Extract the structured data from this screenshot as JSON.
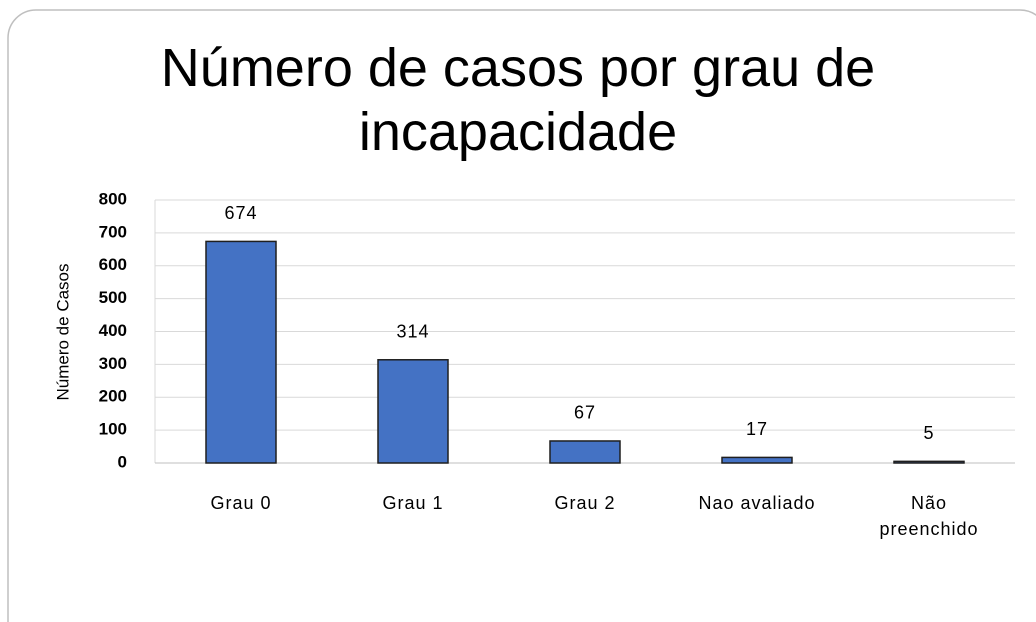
{
  "chart_data": {
    "type": "bar",
    "title": "Número de casos por grau de incapacidade",
    "y_label": "Número de Casos",
    "categories": [
      "Grau 0",
      "Grau 1",
      "Grau 2",
      "Nao avaliado",
      "Não preenchido"
    ],
    "values": [
      674,
      314,
      67,
      17,
      5
    ],
    "color": "#4472c4",
    "ylim": [
      0,
      800
    ],
    "yticks": [
      0,
      100,
      200,
      300,
      400,
      500,
      600,
      700,
      800
    ],
    "grid": true
  }
}
